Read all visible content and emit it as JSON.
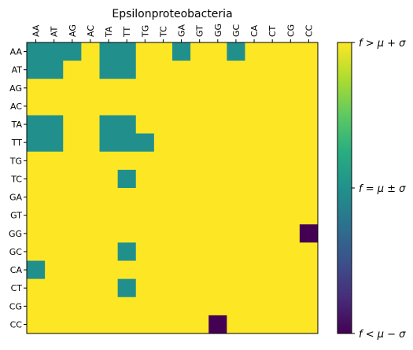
{
  "chart_data": {
    "type": "heatmap",
    "title": "Epsilonproteobacteria",
    "x_labels": [
      "AA",
      "AT",
      "AG",
      "AC",
      "TA",
      "TT",
      "TG",
      "TC",
      "GA",
      "GT",
      "GG",
      "GC",
      "CA",
      "CT",
      "CG",
      "CC"
    ],
    "y_labels": [
      "AA",
      "AT",
      "AG",
      "AC",
      "TA",
      "TT",
      "TG",
      "TC",
      "GA",
      "GT",
      "GG",
      "GC",
      "CA",
      "CT",
      "CG",
      "CC"
    ],
    "value_scale": {
      "low": -1,
      "mid": 0,
      "high": 1
    },
    "colors": {
      "low": "#440154",
      "mid": "#21908d",
      "high": "#fde725"
    },
    "colorbar_labels": [
      "f > μ + σ",
      "f = μ ± σ",
      "f < μ − σ"
    ],
    "values": [
      [
        0,
        0,
        0,
        1,
        0,
        0,
        1,
        1,
        0,
        1,
        1,
        0,
        1,
        1,
        1,
        1
      ],
      [
        0,
        0,
        1,
        1,
        0,
        0,
        1,
        1,
        1,
        1,
        1,
        1,
        1,
        1,
        1,
        1
      ],
      [
        1,
        1,
        1,
        1,
        1,
        1,
        1,
        1,
        1,
        1,
        1,
        1,
        1,
        1,
        1,
        1
      ],
      [
        1,
        1,
        1,
        1,
        1,
        1,
        1,
        1,
        1,
        1,
        1,
        1,
        1,
        1,
        1,
        1
      ],
      [
        0,
        0,
        1,
        1,
        0,
        0,
        1,
        1,
        1,
        1,
        1,
        1,
        1,
        1,
        1,
        1
      ],
      [
        0,
        0,
        1,
        1,
        0,
        0,
        0,
        1,
        1,
        1,
        1,
        1,
        1,
        1,
        1,
        1
      ],
      [
        1,
        1,
        1,
        1,
        1,
        1,
        1,
        1,
        1,
        1,
        1,
        1,
        1,
        1,
        1,
        1
      ],
      [
        1,
        1,
        1,
        1,
        1,
        0,
        1,
        1,
        1,
        1,
        1,
        1,
        1,
        1,
        1,
        1
      ],
      [
        1,
        1,
        1,
        1,
        1,
        1,
        1,
        1,
        1,
        1,
        1,
        1,
        1,
        1,
        1,
        1
      ],
      [
        1,
        1,
        1,
        1,
        1,
        1,
        1,
        1,
        1,
        1,
        1,
        1,
        1,
        1,
        1,
        1
      ],
      [
        1,
        1,
        1,
        1,
        1,
        1,
        1,
        1,
        1,
        1,
        1,
        1,
        1,
        1,
        1,
        -1
      ],
      [
        1,
        1,
        1,
        1,
        1,
        0,
        1,
        1,
        1,
        1,
        1,
        1,
        1,
        1,
        1,
        1
      ],
      [
        0,
        1,
        1,
        1,
        1,
        1,
        1,
        1,
        1,
        1,
        1,
        1,
        1,
        1,
        1,
        1
      ],
      [
        1,
        1,
        1,
        1,
        1,
        0,
        1,
        1,
        1,
        1,
        1,
        1,
        1,
        1,
        1,
        1
      ],
      [
        1,
        1,
        1,
        1,
        1,
        1,
        1,
        1,
        1,
        1,
        1,
        1,
        1,
        1,
        1,
        1
      ],
      [
        1,
        1,
        1,
        1,
        1,
        1,
        1,
        1,
        1,
        1,
        -1,
        1,
        1,
        1,
        1,
        1
      ]
    ]
  }
}
